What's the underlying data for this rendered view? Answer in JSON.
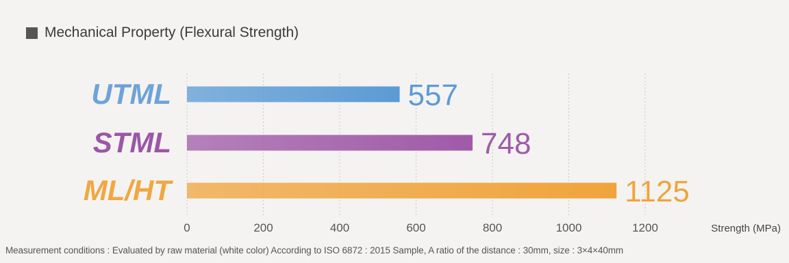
{
  "title": "Mechanical Property (Flexural Strength)",
  "chart_data": {
    "type": "bar",
    "orientation": "horizontal",
    "categories": [
      "UTML",
      "STML",
      "ML/HT"
    ],
    "values": [
      557,
      748,
      1125
    ],
    "data_labels": [
      "557",
      "748",
      "1125"
    ],
    "xlabel": "Strength (MPa)",
    "xlim": [
      0,
      1250
    ],
    "xticks": [
      0,
      200,
      400,
      600,
      800,
      1000,
      1200
    ],
    "grid": true,
    "colors": {
      "UTML": "#5b9bd5",
      "STML": "#a05aa8",
      "ML/HT": "#f0a43c"
    },
    "label_colors": {
      "UTML": "#6fa3d8",
      "STML": "#9b57a6",
      "ML/HT": "#efa843"
    }
  },
  "footnote": "Measurement conditions : Evaluated by raw material (white color) According to ISO 6872 : 2015  Sample, A ratio of the distance : 30mm, size : 3×4×40mm"
}
